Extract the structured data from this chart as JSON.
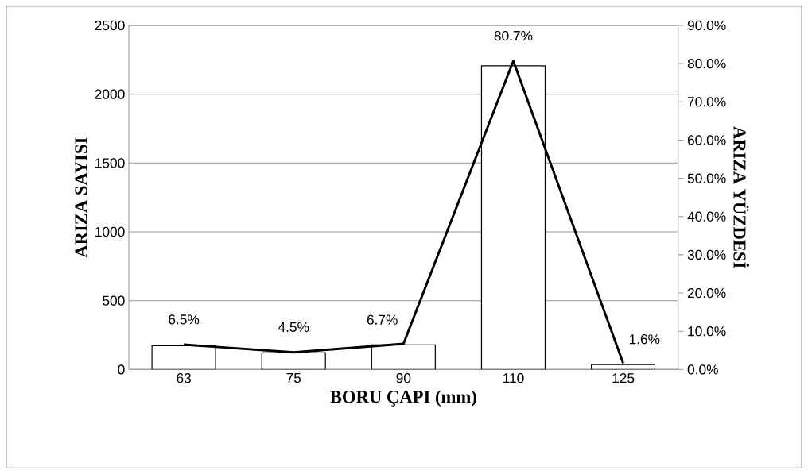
{
  "chart_data": {
    "type": "bar",
    "xlabel": "BORU ÇAPI (mm)",
    "ylabel": "ARIZA SAYISI",
    "y2label": "ARIZA YÜZDESİ",
    "categories": [
      "63",
      "75",
      "90",
      "110",
      "125"
    ],
    "series": [
      {
        "color": "#ffffff",
        "values": [
          173,
          121,
          179,
          2206,
          35
        ]
      },
      {
        "type": "line",
        "axis": "y2",
        "color": "#000000",
        "values": [
          6.5,
          4.5,
          6.7,
          80.7,
          1.6
        ],
        "value_labels": [
          "6.5%",
          "4.5%",
          "6.7%",
          "80.7%",
          "1.6%"
        ]
      }
    ],
    "ylim": [
      0,
      2500
    ],
    "yticks": [
      0,
      500,
      1000,
      1500,
      2000,
      2500
    ],
    "y2lim": [
      0,
      90
    ],
    "y2ticks": [
      {
        "value": 0,
        "label": "0.0%"
      },
      {
        "value": 10,
        "label": "10.0%"
      },
      {
        "value": 20,
        "label": "20.0%"
      },
      {
        "value": 30,
        "label": "30.0%"
      },
      {
        "value": 40,
        "label": "40.0%"
      },
      {
        "value": 50,
        "label": "50.0%"
      },
      {
        "value": 60,
        "label": "60.0%"
      },
      {
        "value": 70,
        "label": "70.0%"
      },
      {
        "value": 80,
        "label": "80.0%"
      },
      {
        "value": 90,
        "label": "90.0%"
      }
    ],
    "grid": "y",
    "marker": "none",
    "line_style": "solid"
  }
}
